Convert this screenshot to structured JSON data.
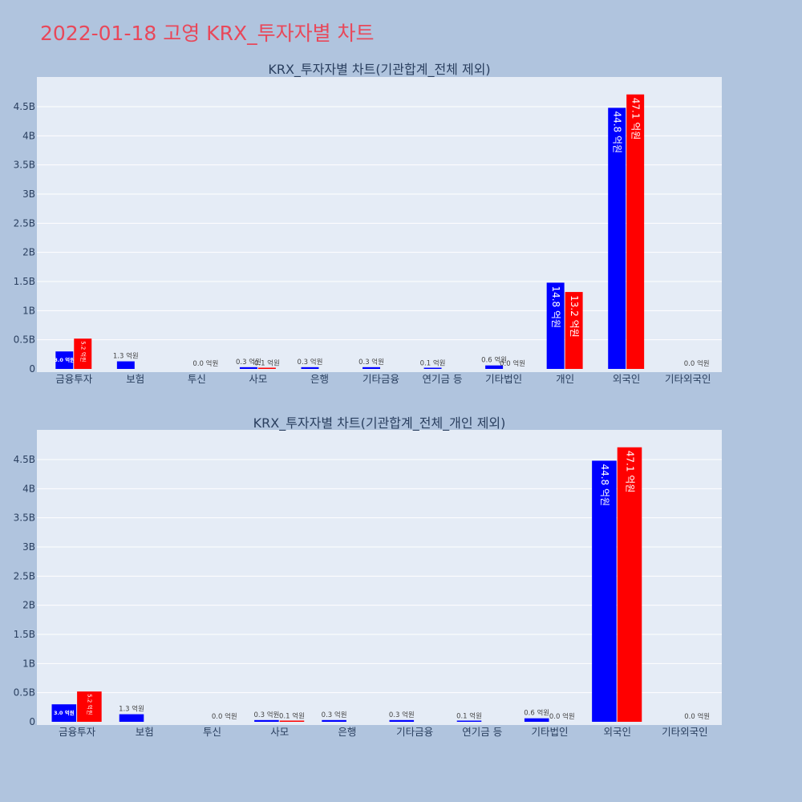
{
  "page": {
    "title": "2022-01-18 고영 KRX_투자자별 차트"
  },
  "colors": {
    "page_bg": "#b0c4de",
    "plot_bg": "#e5ecf6",
    "series1": "#0000ff",
    "series2": "#ff0000",
    "title": "#e8485a"
  },
  "chart_data": [
    {
      "type": "bar",
      "title": "KRX_투자자별 차트(기관합계_전체 제외)",
      "xlabel": "",
      "ylabel": "",
      "grid": true,
      "ylim": [
        0,
        5000000000
      ],
      "yticks": [
        0,
        500000000,
        1000000000,
        1500000000,
        2000000000,
        2500000000,
        3000000000,
        3500000000,
        4000000000,
        4500000000
      ],
      "ytick_labels": [
        "0",
        "0.5B",
        "1B",
        "1.5B",
        "2B",
        "2.5B",
        "3B",
        "3.5B",
        "4B",
        "4.5B"
      ],
      "categories": [
        "금융투자",
        "보험",
        "투신",
        "사모",
        "은행",
        "기타금융",
        "연기금 등",
        "기타법인",
        "개인",
        "외국인",
        "기타외국인"
      ],
      "series": [
        {
          "color": "#0000ff",
          "values": [
            300000000,
            130000000,
            null,
            30000000,
            30000000,
            30000000,
            10000000,
            60000000,
            1480000000,
            4480000000,
            null
          ],
          "labels": [
            "3.0 억원",
            "1.3 억원",
            "",
            "0.3 억원",
            "0.3 억원",
            "0.3 억원",
            "0.1 억원",
            "0.6 억원",
            "14.8 억원",
            "44.8 억원",
            ""
          ]
        },
        {
          "color": "#ff0000",
          "values": [
            520000000,
            null,
            0,
            10000000,
            null,
            null,
            null,
            0,
            1320000000,
            4710000000,
            0
          ],
          "labels": [
            "5.2 억원",
            "",
            "0.0 억원",
            "0.1 억원",
            "",
            "",
            "",
            "0.0 억원",
            "13.2 억원",
            "47.1 억원",
            "0.0 억원"
          ]
        }
      ]
    },
    {
      "type": "bar",
      "title": "KRX_투자자별 차트(기관합계_전체_개인 제외)",
      "xlabel": "",
      "ylabel": "",
      "grid": true,
      "ylim": [
        0,
        5000000000
      ],
      "yticks": [
        0,
        500000000,
        1000000000,
        1500000000,
        2000000000,
        2500000000,
        3000000000,
        3500000000,
        4000000000,
        4500000000
      ],
      "ytick_labels": [
        "0",
        "0.5B",
        "1B",
        "1.5B",
        "2B",
        "2.5B",
        "3B",
        "3.5B",
        "4B",
        "4.5B"
      ],
      "categories": [
        "금융투자",
        "보험",
        "투신",
        "사모",
        "은행",
        "기타금융",
        "연기금 등",
        "기타법인",
        "외국인",
        "기타외국인"
      ],
      "series": [
        {
          "color": "#0000ff",
          "values": [
            300000000,
            130000000,
            null,
            30000000,
            30000000,
            30000000,
            10000000,
            60000000,
            4480000000,
            null
          ],
          "labels": [
            "3.0 억원",
            "1.3 억원",
            "",
            "0.3 억원",
            "0.3 억원",
            "0.3 억원",
            "0.1 억원",
            "0.6 억원",
            "44.8 억원",
            ""
          ]
        },
        {
          "color": "#ff0000",
          "values": [
            520000000,
            null,
            0,
            10000000,
            null,
            null,
            null,
            0,
            4710000000,
            0
          ],
          "labels": [
            "5.2 억원",
            "",
            "0.0 억원",
            "0.1 억원",
            "",
            "",
            "",
            "0.0 억원",
            "47.1 억원",
            "0.0 억원"
          ]
        }
      ]
    }
  ]
}
